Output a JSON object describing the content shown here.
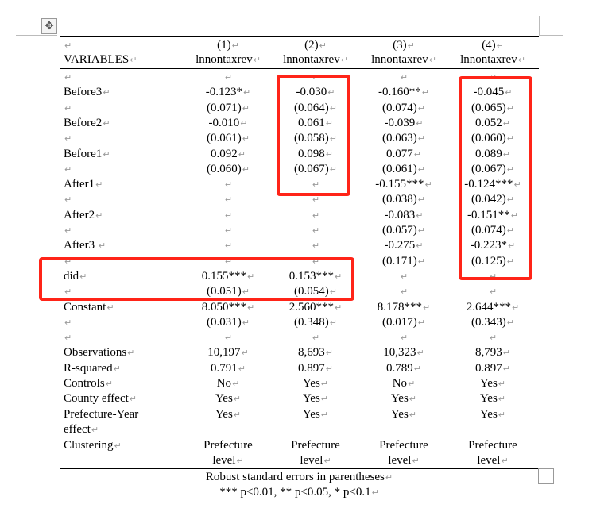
{
  "header": {
    "variables_label": "VARIABLES",
    "columns": [
      {
        "number": "(1)",
        "depvar": "lnnontaxrev"
      },
      {
        "number": "(2)",
        "depvar": "lnnontaxrev"
      },
      {
        "number": "(3)",
        "depvar": "lnnontaxrev"
      },
      {
        "number": "(4)",
        "depvar": "lnnontaxrev"
      }
    ]
  },
  "rows": [
    {
      "label": "",
      "values": [
        "",
        "",
        "",
        ""
      ]
    },
    {
      "label": "Before3",
      "values": [
        "-0.123*",
        "-0.030",
        "-0.160**",
        "-0.045"
      ]
    },
    {
      "label": "",
      "values": [
        "(0.071)",
        "(0.064)",
        "(0.074)",
        "(0.065)"
      ]
    },
    {
      "label": "Before2",
      "values": [
        "-0.010",
        "0.061",
        "-0.039",
        "0.052"
      ]
    },
    {
      "label": "",
      "values": [
        "(0.061)",
        "(0.058)",
        "(0.063)",
        "(0.060)"
      ]
    },
    {
      "label": "Before1",
      "values": [
        "0.092",
        "0.098",
        "0.077",
        "0.089"
      ]
    },
    {
      "label": "",
      "values": [
        "(0.060)",
        "(0.067)",
        "(0.061)",
        "(0.067)"
      ]
    },
    {
      "label": "After1",
      "values": [
        "",
        "",
        "-0.155***",
        "-0.124***"
      ]
    },
    {
      "label": "",
      "values": [
        "",
        "",
        "(0.038)",
        "(0.042)"
      ]
    },
    {
      "label": "After2",
      "values": [
        "",
        "",
        "-0.083",
        "-0.151**"
      ]
    },
    {
      "label": "",
      "values": [
        "",
        "",
        "(0.057)",
        "(0.074)"
      ]
    },
    {
      "label": "After3 ",
      "values": [
        "",
        "",
        "-0.275",
        "-0.223*"
      ]
    },
    {
      "label": "",
      "values": [
        "",
        "",
        "(0.171)",
        "(0.125)"
      ]
    },
    {
      "label": "did",
      "values": [
        "0.155***",
        "0.153***",
        "",
        ""
      ]
    },
    {
      "label": "",
      "values": [
        "(0.051)",
        "(0.054)",
        "",
        ""
      ]
    },
    {
      "label": "Constant",
      "values": [
        "8.050***",
        "2.560***",
        "8.178***",
        "2.644***"
      ]
    },
    {
      "label": "",
      "values": [
        "(0.031)",
        "(0.348)",
        "(0.017)",
        "(0.343)"
      ]
    },
    {
      "label": "",
      "values": [
        "",
        "",
        "",
        ""
      ]
    },
    {
      "label": "Observations",
      "values": [
        "10,197",
        "8,693",
        "10,323",
        "8,793"
      ]
    },
    {
      "label": "R-squared",
      "values": [
        "0.791",
        "0.897",
        "0.789",
        "0.897"
      ]
    },
    {
      "label": "Controls",
      "values": [
        "No",
        "Yes",
        "No",
        "Yes"
      ]
    },
    {
      "label": "County effect",
      "values": [
        "Yes",
        "Yes",
        "Yes",
        "Yes"
      ]
    }
  ],
  "prefecture_year": {
    "label_line1": "Prefecture-Year",
    "label_line2": "effect",
    "values": [
      "Yes",
      "Yes",
      "Yes",
      "Yes"
    ]
  },
  "clustering": {
    "label": "Clustering",
    "line1": [
      "Prefecture",
      "Prefecture",
      "Prefecture",
      "Prefecture"
    ],
    "line2": [
      "level",
      "level",
      "level",
      "level"
    ]
  },
  "notes": {
    "line1": "Robust standard errors in parentheses",
    "line2": "*** p<0.01, ** p<0.05, * p<0.1"
  },
  "icons": {
    "table_move_handle": "move-arrows-icon",
    "paragraph_mark": "return-arrow-icon"
  },
  "colors": {
    "highlight_box": "#ff2418"
  }
}
